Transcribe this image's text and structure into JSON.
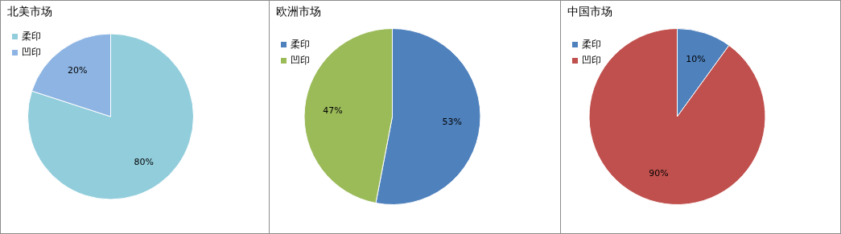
{
  "chart_data": [
    {
      "type": "pie",
      "title": "北美市场",
      "categories": [
        "柔印",
        "凹印"
      ],
      "values": [
        80,
        20
      ],
      "colors": [
        "#92cddc",
        "#8db4e2"
      ],
      "value_labels": [
        "80%",
        "20%"
      ],
      "legend": "top left"
    },
    {
      "type": "pie",
      "title": "欧洲市场",
      "categories": [
        "柔印",
        "凹印"
      ],
      "values": [
        53,
        47
      ],
      "colors": [
        "#4f81bd",
        "#9bbb59"
      ],
      "value_labels": [
        "53%",
        "47%"
      ],
      "legend": "top left"
    },
    {
      "type": "pie",
      "title": "中国市场",
      "categories": [
        "柔印",
        "凹印"
      ],
      "values": [
        10,
        90
      ],
      "colors": [
        "#4f81bd",
        "#c0504d"
      ],
      "value_labels": [
        "10%",
        "90%"
      ],
      "legend": "top left"
    }
  ]
}
